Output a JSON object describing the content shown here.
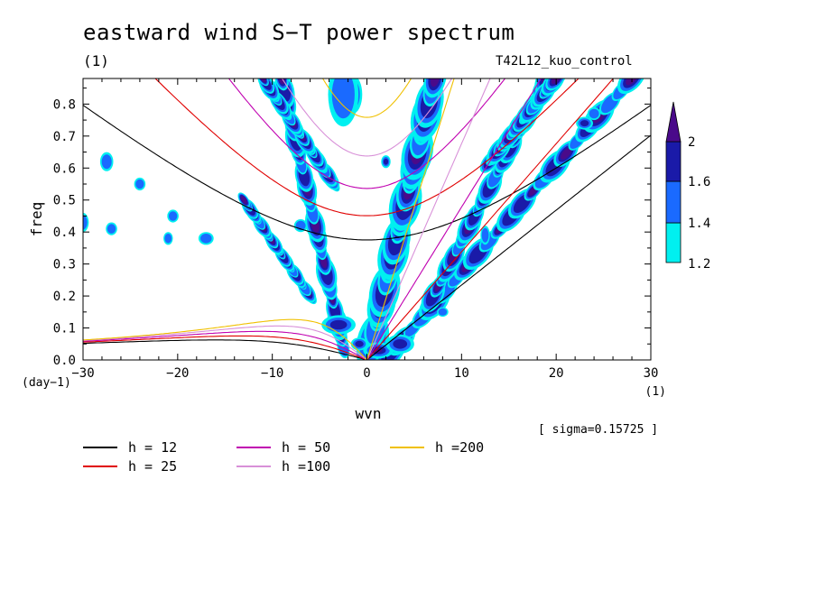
{
  "title": "eastward wind S−T power spectrum",
  "subtitle": "(1)",
  "run_label": "T42L12_kuo_control",
  "sigma_label": "[ sigma=0.15725 ]",
  "chart_data": {
    "type": "heatmap",
    "title": "eastward wind S−T power spectrum",
    "xlabel": "wvn",
    "ylabel": "freq",
    "x_unit": "(1)",
    "y_unit": "(day−1)",
    "xlim": [
      -30,
      30
    ],
    "ylim": [
      0,
      0.88
    ],
    "xticks": [
      -30,
      -20,
      -10,
      0,
      10,
      20,
      30
    ],
    "xtick_labels": [
      "−30",
      "−20",
      "−10",
      "0",
      "10",
      "20",
      "30"
    ],
    "yticks": [
      0.0,
      0.1,
      0.2,
      0.3,
      0.4,
      0.5,
      0.6,
      0.7,
      0.8
    ],
    "ytick_labels": [
      "0.0",
      "0.1",
      "0.2",
      "0.3",
      "0.4",
      "0.5",
      "0.6",
      "0.7",
      "0.8"
    ],
    "colorbar": {
      "levels": [
        1.2,
        1.4,
        1.6,
        2
      ],
      "labels": [
        "1.2",
        "1.4",
        "1.6",
        "2"
      ],
      "colors": [
        "#00f0f0",
        "#1a6aff",
        "#1a1aa8",
        "#4a0a8a"
      ]
    },
    "dispersion_curves": [
      {
        "name": "h = 12",
        "h": 12,
        "color": "#000000"
      },
      {
        "name": "h = 25",
        "h": 25,
        "color": "#e00000"
      },
      {
        "name": "h = 50",
        "h": 50,
        "color": "#c000b0"
      },
      {
        "name": "h =100",
        "h": 100,
        "color": "#d890d8"
      },
      {
        "name": "h =200",
        "h": 200,
        "color": "#f0c000"
      }
    ],
    "features": [
      {
        "name": "kelvin-ridge",
        "x0": 0.3,
        "y0": 0.02,
        "x1": 7.2,
        "y1": 0.88,
        "width": 1.3
      },
      {
        "name": "ridge-n1",
        "x0": 2.5,
        "y0": 0.02,
        "x1": 28,
        "y1": 0.88,
        "width": 0.9
      },
      {
        "name": "ridge-n2",
        "x0": 7,
        "y0": 0.2,
        "x1": 19,
        "y1": 0.88,
        "width": 0.8
      },
      {
        "name": "ridge-n3",
        "x0": 13,
        "y0": 0.62,
        "x1": 20,
        "y1": 0.88,
        "width": 0.7
      },
      {
        "name": "ridge-w1",
        "x0": -2.5,
        "y0": 0.04,
        "x1": -9,
        "y1": 0.88,
        "width": 0.8
      },
      {
        "name": "ridge-w2",
        "x0": -3.5,
        "y0": 0.55,
        "x1": -11,
        "y1": 0.88,
        "width": 0.6
      },
      {
        "name": "ridge-w3",
        "x0": -6,
        "y0": 0.2,
        "x1": -13,
        "y1": 0.5,
        "width": 0.5
      }
    ],
    "blobs": [
      {
        "x": 1.2,
        "y": 0.03,
        "rx": 1.6,
        "ry": 0.025,
        "level": 3
      },
      {
        "x": -0.8,
        "y": 0.05,
        "rx": 0.9,
        "ry": 0.02,
        "level": 2
      },
      {
        "x": 3.5,
        "y": 0.05,
        "rx": 1.5,
        "ry": 0.03,
        "level": 2
      },
      {
        "x": -3.0,
        "y": 0.11,
        "rx": 1.8,
        "ry": 0.03,
        "level": 2
      },
      {
        "x": -1.5,
        "y": 0.83,
        "rx": 1.0,
        "ry": 0.06,
        "level": 3
      },
      {
        "x": -2.5,
        "y": 0.83,
        "rx": 1.6,
        "ry": 0.1,
        "level": 1
      },
      {
        "x": 2.0,
        "y": 0.62,
        "rx": 0.5,
        "ry": 0.02,
        "level": 2
      },
      {
        "x": 12.5,
        "y": 0.39,
        "rx": 0.5,
        "ry": 0.03,
        "level": 1
      },
      {
        "x": -20.5,
        "y": 0.45,
        "rx": 0.6,
        "ry": 0.02,
        "level": 1
      },
      {
        "x": -24,
        "y": 0.55,
        "rx": 0.6,
        "ry": 0.02,
        "level": 1
      },
      {
        "x": -27,
        "y": 0.41,
        "rx": 0.6,
        "ry": 0.02,
        "level": 1
      },
      {
        "x": -27.5,
        "y": 0.62,
        "rx": 0.7,
        "ry": 0.03,
        "level": 1
      },
      {
        "x": -17,
        "y": 0.38,
        "rx": 0.8,
        "ry": 0.02,
        "level": 1
      },
      {
        "x": -21,
        "y": 0.38,
        "rx": 0.5,
        "ry": 0.02,
        "level": 1
      },
      {
        "x": -7,
        "y": 0.42,
        "rx": 0.7,
        "ry": 0.02,
        "level": 1
      },
      {
        "x": -30,
        "y": 0.43,
        "rx": 0.6,
        "ry": 0.03,
        "level": 1
      },
      {
        "x": 23,
        "y": 0.74,
        "rx": 0.9,
        "ry": 0.02,
        "level": 2
      },
      {
        "x": 24,
        "y": 0.77,
        "rx": 0.7,
        "ry": 0.02,
        "level": 1
      },
      {
        "x": 8,
        "y": 0.15,
        "rx": 0.6,
        "ry": 0.015,
        "level": 1
      }
    ]
  },
  "legend": [
    {
      "label": "h = 12",
      "color": "#000000"
    },
    {
      "label": "h = 25",
      "color": "#e00000"
    },
    {
      "label": "h = 50",
      "color": "#c000b0"
    },
    {
      "label": "h =100",
      "color": "#d890d8"
    },
    {
      "label": "h =200",
      "color": "#f0c000"
    }
  ]
}
